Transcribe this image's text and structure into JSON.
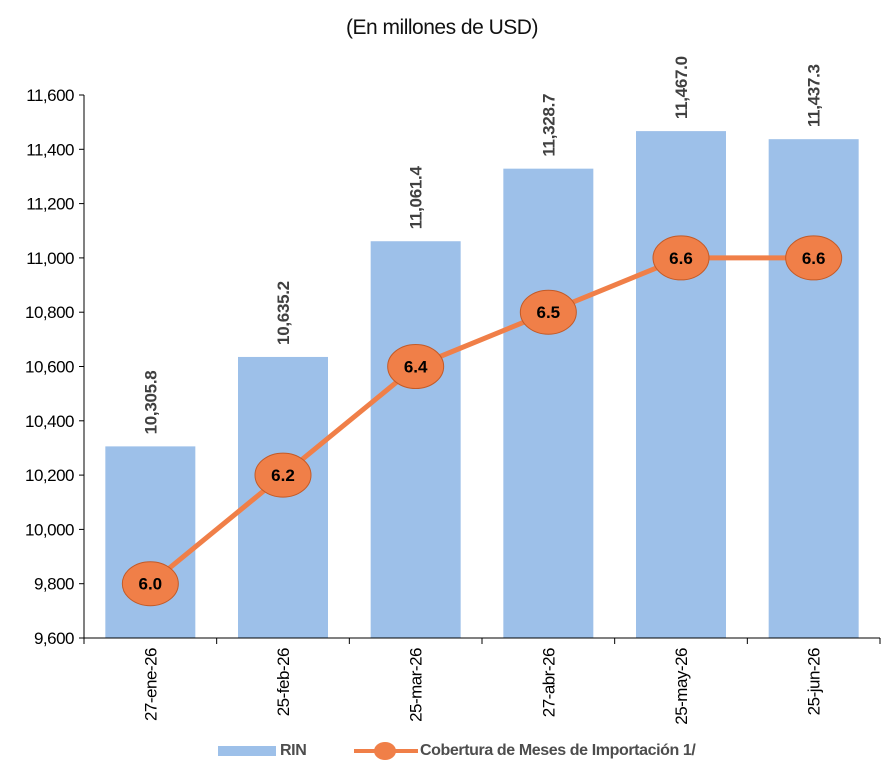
{
  "chart_data": {
    "type": "bar",
    "subtitle": "(En millones de USD)",
    "categories": [
      "27-ene-26",
      "25-feb-26",
      "25-mar-26",
      "27-abr-26",
      "25-may-26",
      "25-jun-26"
    ],
    "series": [
      {
        "name": "RIN",
        "type": "bar",
        "axis": "left",
        "color": "#9dc0e9",
        "values": [
          10305.8,
          10635.2,
          11061.4,
          11328.7,
          11467.0,
          11437.3
        ],
        "labels": [
          "10,305.8",
          "10,635.2",
          "11,061.4",
          "11,328.7",
          "11,467.0",
          "11,437.3"
        ]
      },
      {
        "name": "Cobertura de Meses de Importación 1/",
        "type": "line",
        "axis": "secondary (unlabeled)",
        "color": "#f07f48",
        "values": [
          6.0,
          6.2,
          6.4,
          6.5,
          6.6,
          6.6
        ],
        "labels": [
          "6.0",
          "6.2",
          "6.4",
          "6.5",
          "6.6",
          "6.6"
        ]
      }
    ],
    "y_axis": {
      "ylim": [
        9600,
        11600
      ],
      "ticks": [
        9600,
        9800,
        10000,
        10200,
        10400,
        10600,
        10800,
        11000,
        11200,
        11400,
        11600
      ],
      "tick_labels": [
        "9,600",
        "9,800",
        "10,000",
        "10,200",
        "10,400",
        "10,600",
        "10,800",
        "11,000",
        "11,200",
        "11,400",
        "11,600"
      ]
    },
    "grid": false,
    "legend": "bottom"
  }
}
